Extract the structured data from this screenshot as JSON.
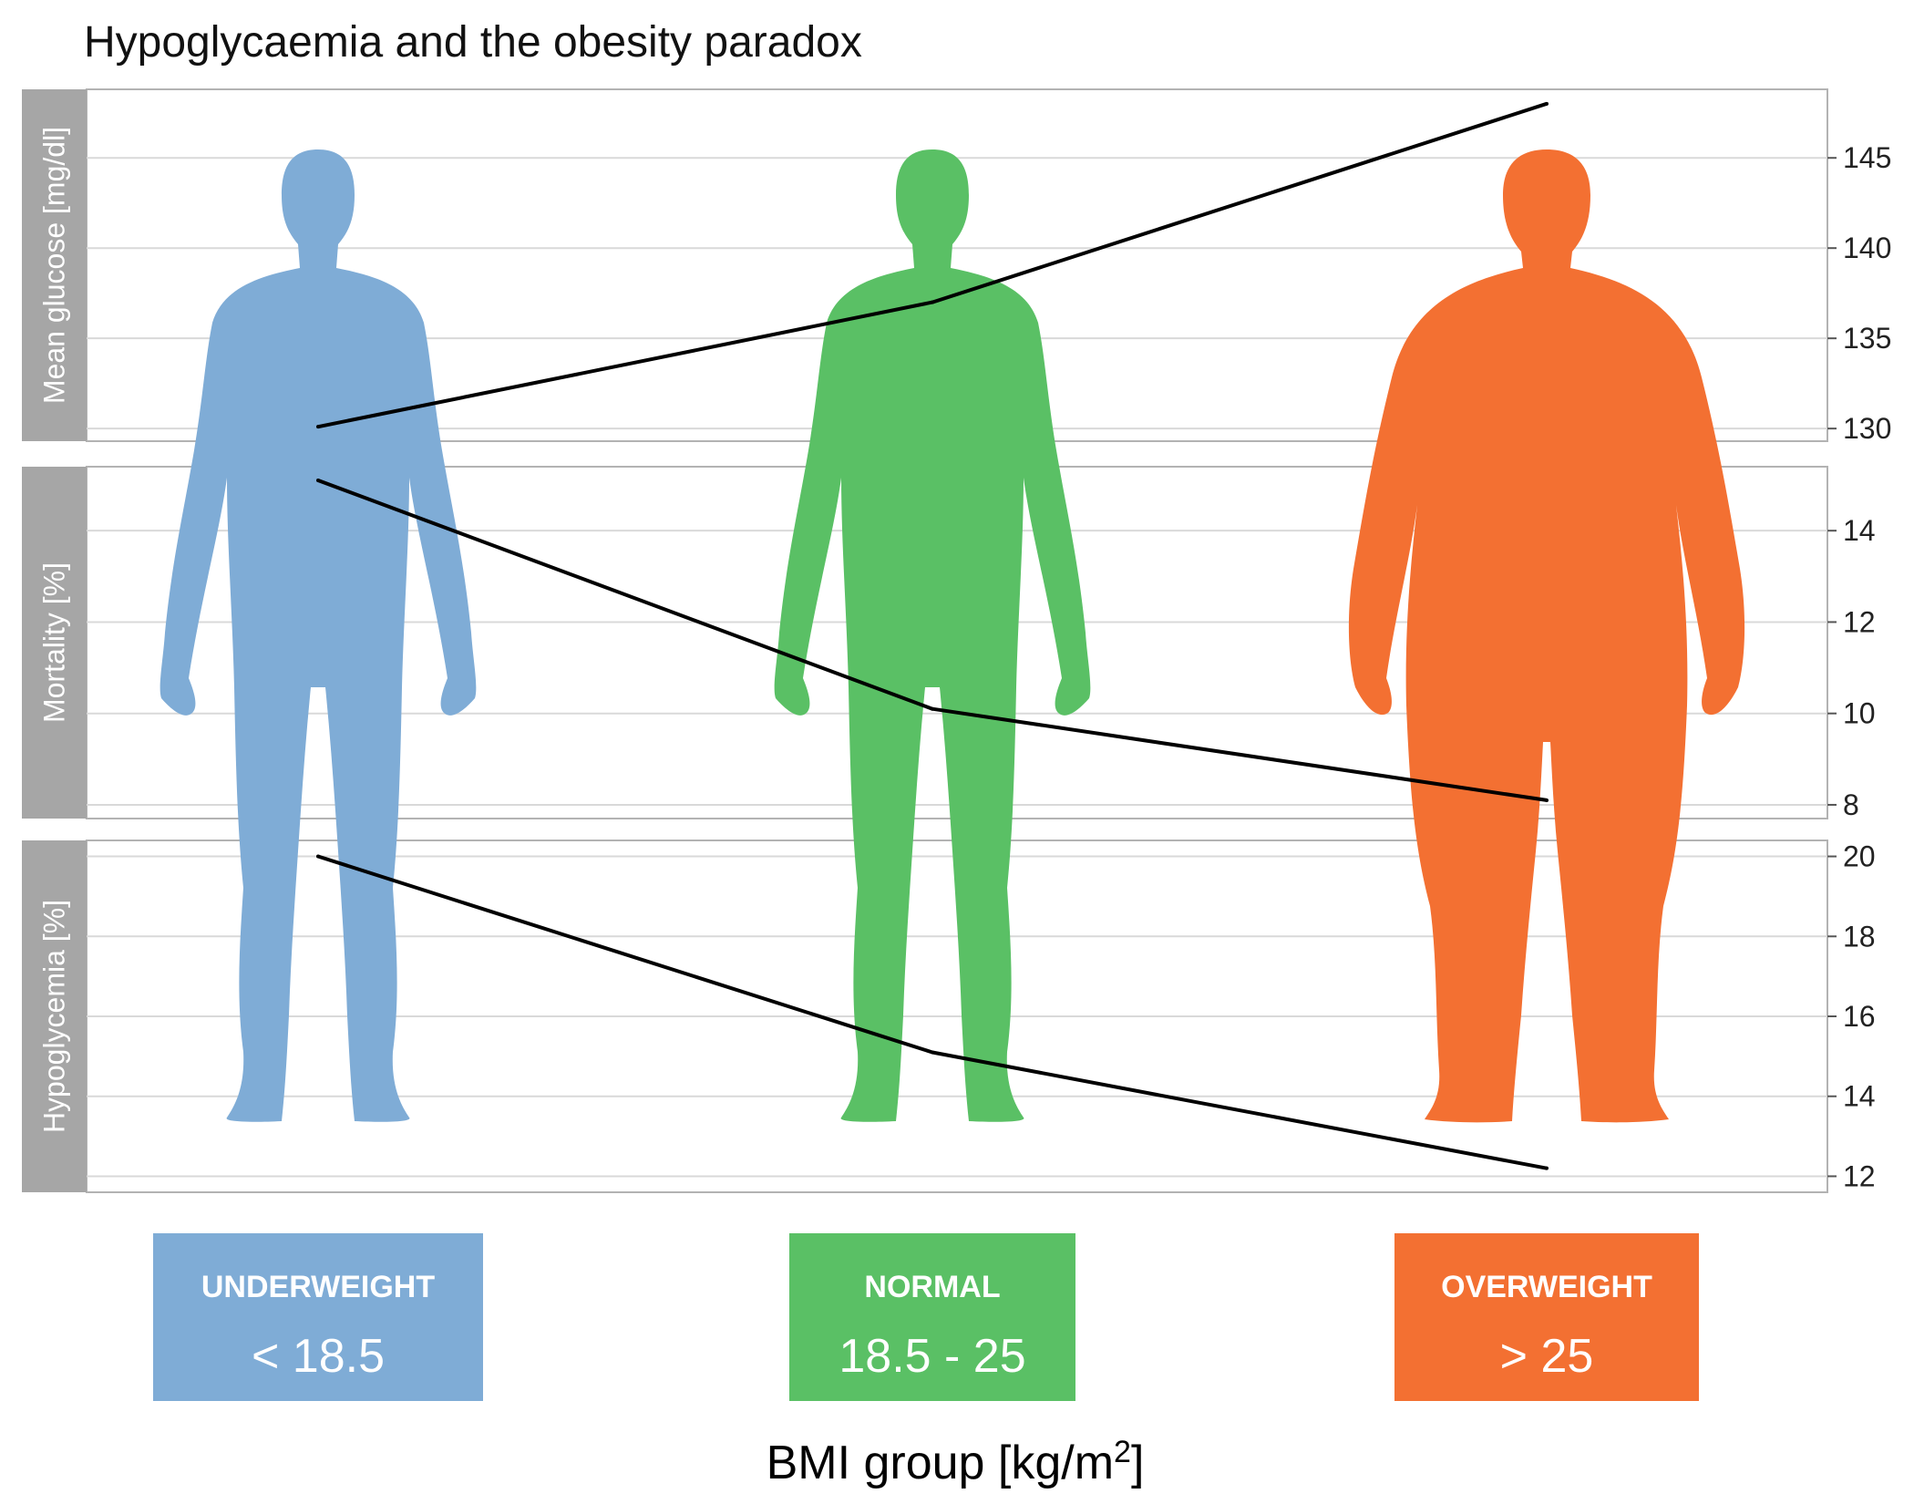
{
  "chart_data": {
    "type": "line",
    "title": "Hypoglycaemia and the obesity paradox",
    "xlabel": "BMI group [kg/m",
    "xlabel_sup": "2",
    "xlabel_close": "]",
    "categories": [
      "UNDERWEIGHT",
      "NORMAL",
      "OVERWEIGHT"
    ],
    "category_ranges": [
      "< 18.5",
      "18.5 - 25",
      "> 25"
    ],
    "category_colors": [
      "#7facd6",
      "#5ac065",
      "#f37032"
    ],
    "line_color": "#000000",
    "grid": true,
    "panels": [
      {
        "ylabel": "Mean glucose [mg/dl]",
        "ylim": [
          129.3,
          148.8
        ],
        "yticks": [
          130,
          135,
          140,
          145
        ],
        "values": [
          130.1,
          137.0,
          148.0
        ]
      },
      {
        "ylabel": "Mortality [%]",
        "ylim": [
          7.7,
          15.4
        ],
        "yticks": [
          8,
          10,
          12,
          14
        ],
        "values": [
          15.1,
          10.1,
          8.1
        ]
      },
      {
        "ylabel": "Hypoglycemia [%]",
        "ylim": [
          11.6,
          20.4
        ],
        "yticks": [
          12,
          14,
          16,
          18,
          20
        ],
        "values": [
          20.0,
          15.1,
          12.2
        ]
      }
    ]
  }
}
